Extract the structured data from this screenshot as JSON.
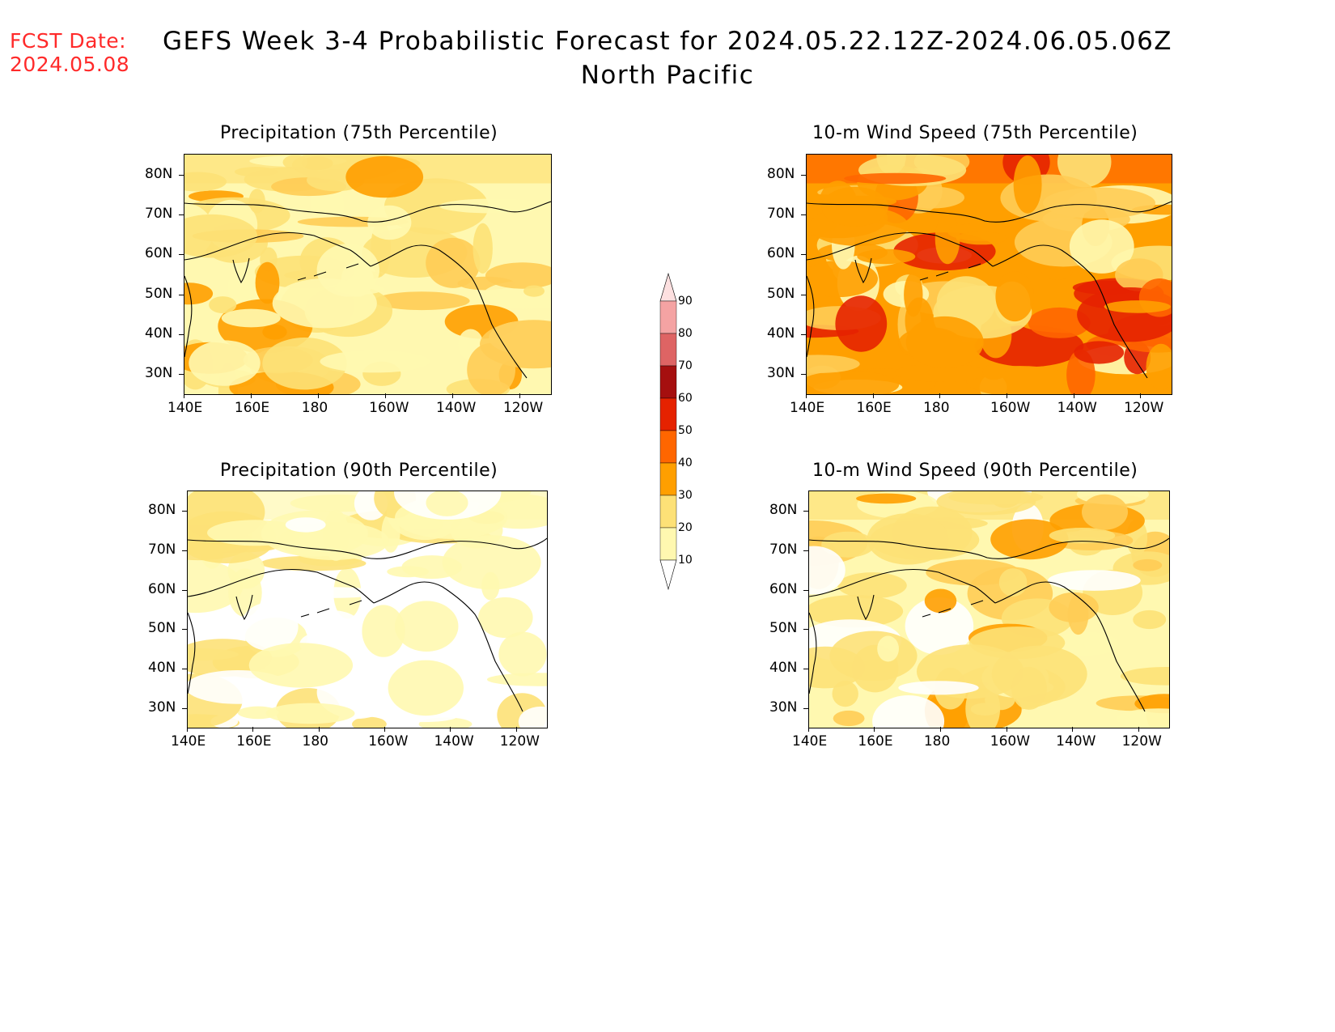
{
  "header": {
    "fcst_label": "FCST Date:",
    "fcst_date": "2024.05.08",
    "title": "GEFS Week 3-4 Probabilistic Forecast for 2024.05.22.12Z-2024.06.05.06Z",
    "subtitle": "North Pacific"
  },
  "axes": {
    "lat_labels": [
      "80N",
      "70N",
      "60N",
      "50N",
      "40N",
      "30N"
    ],
    "lon_labels": [
      "140E",
      "160E",
      "180",
      "160W",
      "140W",
      "120W"
    ]
  },
  "panels": [
    {
      "id": "precip75",
      "title": "Precipitation (75th Percentile)",
      "level": "low"
    },
    {
      "id": "wind75",
      "title": "10-m Wind Speed (75th Percentile)",
      "level": "high"
    },
    {
      "id": "precip90",
      "title": "Precipitation (90th Percentile)",
      "level": "verylow"
    },
    {
      "id": "wind90",
      "title": "10-m Wind Speed (90th Percentile)",
      "level": "mid"
    }
  ],
  "colorbar": {
    "labels": [
      "90",
      "80",
      "70",
      "60",
      "50",
      "40",
      "30",
      "20",
      "10"
    ],
    "colors": [
      "#fde0e0",
      "#f4a3a3",
      "#de6464",
      "#a50f0f",
      "#e52200",
      "#ff6600",
      "#ff9f00",
      "#fde177",
      "#fff8b0"
    ]
  }
}
